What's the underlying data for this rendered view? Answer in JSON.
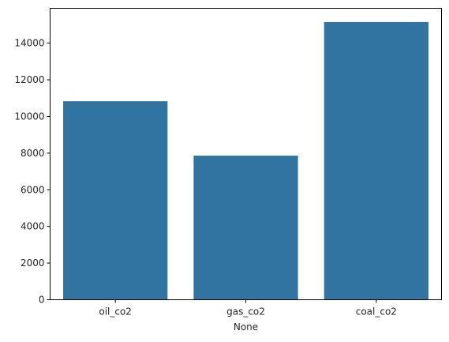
{
  "chart_data": {
    "type": "bar",
    "categories": [
      "oil_co2",
      "gas_co2",
      "coal_co2"
    ],
    "values": [
      10830,
      7860,
      15150
    ],
    "xlabel": "None",
    "ylabel": "",
    "ylim": [
      0,
      15900
    ],
    "yticks": [
      0,
      2000,
      4000,
      6000,
      8000,
      10000,
      12000,
      14000
    ],
    "bar_color": "#3274a1",
    "grid": false
  }
}
